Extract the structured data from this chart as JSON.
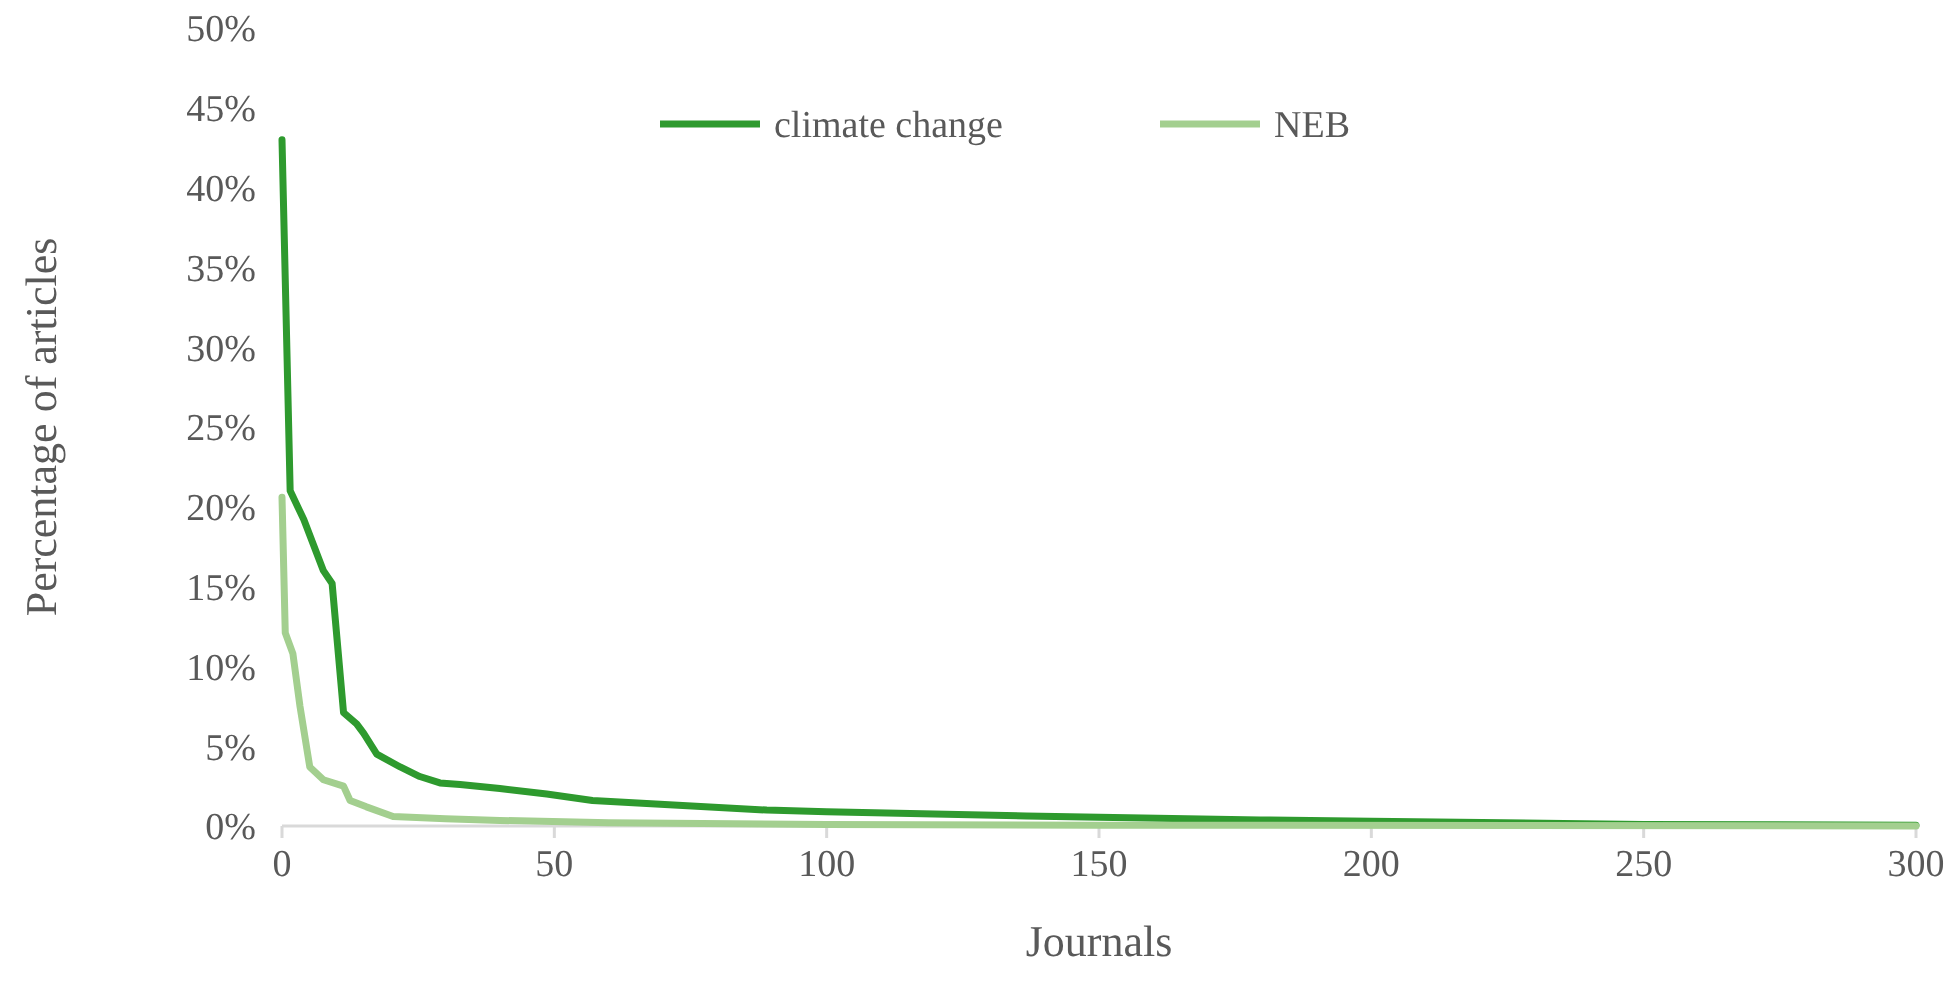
{
  "chart_data": {
    "type": "line",
    "xlabel": "Journals",
    "ylabel": "Percentage of articles",
    "xlim": [
      0,
      300
    ],
    "xticks": [
      0,
      50,
      100,
      150,
      200,
      250,
      300
    ],
    "ylim": [
      0,
      50
    ],
    "yticks": [
      {
        "value": 0,
        "label": "0%"
      },
      {
        "value": 5,
        "label": "5%"
      },
      {
        "value": 10,
        "label": "10%"
      },
      {
        "value": 15,
        "label": "15%"
      },
      {
        "value": 20,
        "label": "20%"
      },
      {
        "value": 25,
        "label": "25%"
      },
      {
        "value": 30,
        "label": "30%"
      },
      {
        "value": 35,
        "label": "35%"
      },
      {
        "value": 40,
        "label": "40%"
      },
      {
        "value": 45,
        "label": "45%"
      },
      {
        "value": 50,
        "label": "50%"
      }
    ],
    "grid": false,
    "legend": "top",
    "marker": "none",
    "line_style": "solid",
    "series": [
      {
        "name": "climate change",
        "color": "#2e9a2e",
        "x": [
          0,
          1.5,
          4,
          7.6,
          9.2,
          11.3,
          13.7,
          15,
          17.4,
          21.7,
          25.3,
          29,
          32.7,
          40,
          48.6,
          57,
          89,
          100,
          136.6,
          150,
          179.6,
          200,
          250,
          300
        ],
        "values": [
          43,
          21,
          19.2,
          16,
          15.2,
          7.1,
          6.4,
          5.8,
          4.5,
          3.7,
          3.1,
          2.7,
          2.6,
          2.35,
          2,
          1.6,
          1,
          0.9,
          0.63,
          0.55,
          0.38,
          0.3,
          0.1,
          0.05
        ]
      },
      {
        "name": "NEB",
        "color": "#a3cf8f",
        "x": [
          0,
          0.6,
          2,
          3.3,
          5.1,
          7.6,
          11.3,
          12.5,
          15.5,
          20.4,
          30,
          40,
          60,
          100,
          150,
          300
        ],
        "values": [
          20.6,
          12.1,
          10.8,
          7.5,
          3.7,
          2.9,
          2.5,
          1.6,
          1.2,
          0.6,
          0.45,
          0.35,
          0.2,
          0.1,
          0.05,
          0
        ]
      }
    ]
  }
}
